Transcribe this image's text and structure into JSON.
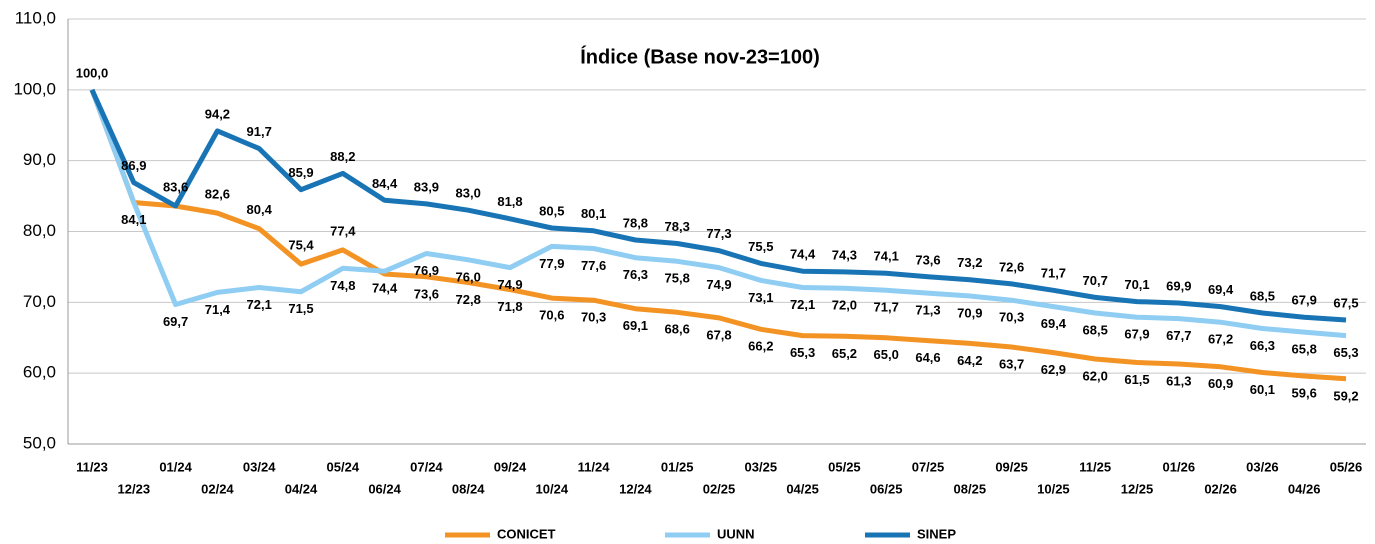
{
  "chart_data": {
    "type": "line",
    "title": "Índice (Base nov-23=100)",
    "categories": [
      "11/23",
      "12/23",
      "01/24",
      "02/24",
      "03/24",
      "04/24",
      "05/24",
      "06/24",
      "07/24",
      "08/24",
      "09/24",
      "10/24",
      "11/24",
      "12/24",
      "01/25",
      "02/25",
      "03/25",
      "04/25",
      "05/25",
      "06/25",
      "07/25",
      "08/25",
      "09/25",
      "10/25",
      "11/25",
      "12/25",
      "01/26",
      "02/26",
      "03/26",
      "04/26",
      "05/26"
    ],
    "series": [
      {
        "name": "CONICET",
        "color": "#f39324",
        "values": [
          100,
          84.1,
          83.6,
          82.6,
          80.4,
          75.4,
          77.4,
          74.0,
          73.6,
          72.8,
          71.8,
          70.6,
          70.3,
          69.1,
          68.6,
          67.8,
          66.2,
          65.3,
          65.2,
          65.0,
          64.6,
          64.2,
          63.7,
          62.9,
          62.0,
          61.5,
          61.3,
          60.9,
          60.1,
          59.6,
          59.2
        ],
        "value_labels": [
          null,
          null,
          "83,6",
          "82,6",
          "80,4",
          "75,4",
          "77,4",
          null,
          "73,6",
          "72,8",
          "71,8",
          "70,6",
          "70,3",
          "69,1",
          "68,6",
          "67,8",
          "66,2",
          "65,3",
          "65,2",
          "65,0",
          "64,6",
          "64,2",
          "63,7",
          "62,9",
          "62,0",
          "61,5",
          "61,3",
          "60,9",
          "60,1",
          "59,6",
          "59,2"
        ]
      },
      {
        "name": "UUNN",
        "color": "#8fcdf3",
        "values": [
          100,
          84.1,
          69.7,
          71.4,
          72.1,
          71.5,
          74.8,
          74.4,
          76.9,
          76.0,
          74.9,
          77.9,
          77.6,
          76.3,
          75.8,
          74.9,
          73.1,
          72.1,
          72.0,
          71.7,
          71.3,
          70.9,
          70.3,
          69.4,
          68.5,
          67.9,
          67.7,
          67.2,
          66.3,
          65.8,
          65.3
        ],
        "value_labels": [
          null,
          "84,1",
          "69,7",
          "71,4",
          "72,1",
          "71,5",
          "74,8",
          "74,4",
          "76,9",
          "76,0",
          "74,9",
          "77,9",
          "77,6",
          "76,3",
          "75,8",
          "74,9",
          "73,1",
          "72,1",
          "72,0",
          "71,7",
          "71,3",
          "70,9",
          "70,3",
          "69,4",
          "68,5",
          "67,9",
          "67,7",
          "67,2",
          "66,3",
          "65,8",
          "65,3"
        ]
      },
      {
        "name": "SINEP",
        "color": "#1874b4",
        "values": [
          100,
          86.9,
          83.6,
          94.2,
          91.7,
          85.9,
          88.2,
          84.4,
          83.9,
          83.0,
          81.8,
          80.5,
          80.1,
          78.8,
          78.3,
          77.3,
          75.5,
          74.4,
          74.3,
          74.1,
          73.6,
          73.2,
          72.6,
          71.7,
          70.7,
          70.1,
          69.9,
          69.4,
          68.5,
          67.9,
          67.5
        ],
        "value_labels": [
          "100,0",
          "86,9",
          null,
          "94,2",
          "91,7",
          "85,9",
          "88,2",
          "84,4",
          "83,9",
          "83,0",
          "81,8",
          "80,5",
          "80,1",
          "78,8",
          "78,3",
          "77,3",
          "75,5",
          "74,4",
          "74,3",
          "74,1",
          "73,6",
          "73,2",
          "72,6",
          "71,7",
          "70,7",
          "70,1",
          "69,9",
          "69,4",
          "68,5",
          "67,9",
          "67,5"
        ]
      }
    ],
    "ylim": [
      50,
      110
    ],
    "yticks": [
      {
        "value": 50,
        "label": "50,0"
      },
      {
        "value": 60,
        "label": "60,0"
      },
      {
        "value": 70,
        "label": "70,0"
      },
      {
        "value": 80,
        "label": "80,0"
      },
      {
        "value": 90,
        "label": "90,0"
      },
      {
        "value": 100,
        "label": "100,0"
      },
      {
        "value": 110,
        "label": "110,0"
      }
    ],
    "grid": true,
    "legend": "bottom"
  }
}
